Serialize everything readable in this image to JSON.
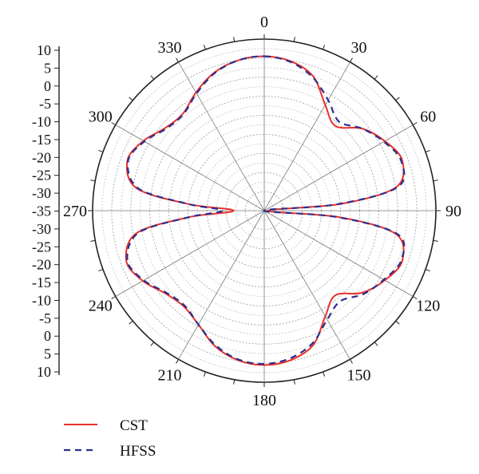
{
  "chart_data": {
    "type": "polar-line",
    "title": "",
    "angle_ticks": [
      "0",
      "30",
      "60",
      "90",
      "120",
      "150",
      "180",
      "210",
      "240",
      "270",
      "300",
      "330"
    ],
    "angle_tick_values": [
      0,
      30,
      60,
      90,
      120,
      150,
      180,
      210,
      240,
      270,
      300,
      330
    ],
    "radial_axis_labels": [
      "10",
      "5",
      "0",
      "-5",
      "-10",
      "-15",
      "-20",
      "-25",
      "-30",
      "-35",
      "-30",
      "-25",
      "-20",
      "-15",
      "-10",
      "-5",
      "0",
      "5",
      "10"
    ],
    "rlim": [
      -35,
      10
    ],
    "angle_zero_location": "top",
    "angle_direction": "clockwise",
    "grid": true,
    "legend_position": "bottom-left",
    "series": [
      {
        "name": "CST",
        "color": "#e8302a",
        "dash": "solid",
        "angles": [
          0,
          10,
          20,
          30,
          40,
          50,
          60,
          70,
          80,
          85,
          90,
          95,
          100,
          110,
          120,
          130,
          140,
          150,
          160,
          170,
          180,
          190,
          200,
          210,
          220,
          230,
          240,
          250,
          260,
          265,
          270,
          275,
          280,
          290,
          300,
          310,
          320,
          330,
          340,
          350
        ],
        "values": [
          5.5,
          4.8,
          2.5,
          -3.0,
          -6.0,
          -1.5,
          1.5,
          3.5,
          0.0,
          -15.0,
          -34.0,
          -15.0,
          0.0,
          3.5,
          1.5,
          -1.5,
          -6.0,
          -3.0,
          2.5,
          4.8,
          5.5,
          4.8,
          2.8,
          -0.5,
          -2.2,
          -1.2,
          1.8,
          3.5,
          -1.0,
          -15.0,
          -27.0,
          -15.0,
          -1.0,
          3.2,
          1.6,
          -1.2,
          -1.8,
          0.8,
          3.5,
          5.0
        ]
      },
      {
        "name": "HFSS",
        "color": "#2b2f8f",
        "dash": "dashed",
        "angles": [
          0,
          10,
          20,
          30,
          40,
          50,
          60,
          70,
          80,
          85,
          90,
          95,
          100,
          110,
          120,
          130,
          140,
          150,
          160,
          170,
          180,
          190,
          200,
          210,
          220,
          230,
          240,
          250,
          260,
          265,
          270,
          275,
          280,
          290,
          300,
          310,
          320,
          330,
          340,
          350
        ],
        "values": [
          5.5,
          4.6,
          2.2,
          -1.5,
          -4.5,
          -1.5,
          1.2,
          3.2,
          0.5,
          -16.0,
          -35.0,
          -16.0,
          0.5,
          3.2,
          1.2,
          -1.0,
          -4.0,
          -2.0,
          2.0,
          4.3,
          5.2,
          4.6,
          2.5,
          -0.5,
          -2.5,
          -1.5,
          1.5,
          3.2,
          -1.5,
          -15.0,
          -24.0,
          -15.0,
          -1.5,
          3.0,
          1.3,
          -1.5,
          -2.0,
          0.5,
          3.3,
          5.0
        ]
      }
    ]
  }
}
